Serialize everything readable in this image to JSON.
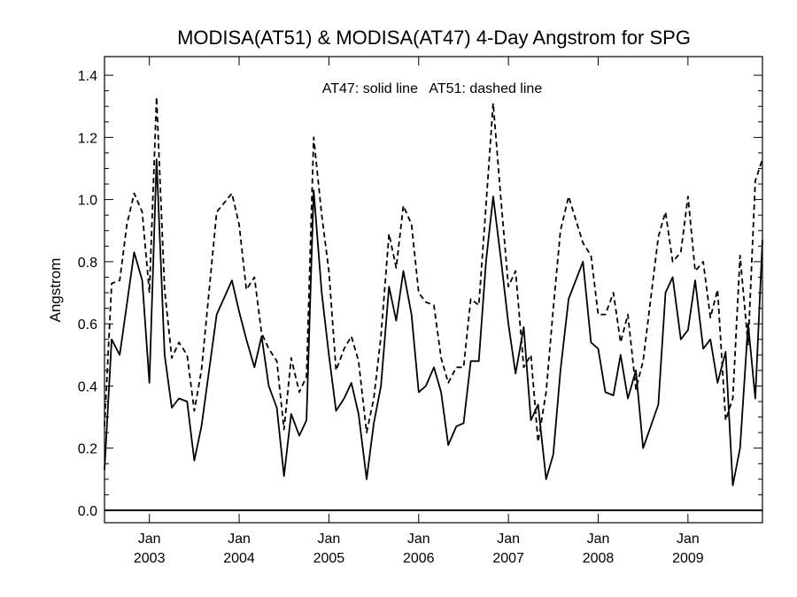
{
  "chart_data": {
    "type": "line",
    "title": "MODISA(AT51) & MODISA(AT47) 4-Day Angstrom for SPG",
    "xlabel": "",
    "ylabel": "Angstrom",
    "annotation": "AT47: solid line   AT51: dashed line",
    "ylim": [
      -0.04,
      1.46
    ],
    "xlim": [
      2002.5,
      2009.83
    ],
    "yticks": [
      0.0,
      0.2,
      0.4,
      0.6,
      0.8,
      1.0,
      1.2,
      1.4
    ],
    "ytick_labels": [
      "0.0",
      "0.2",
      "0.4",
      "0.6",
      "0.8",
      "1.0",
      "1.2",
      "1.4"
    ],
    "xticks": [
      2003.0,
      2004.0,
      2005.0,
      2006.0,
      2007.0,
      2008.0,
      2009.0
    ],
    "xtick_labels_top": [
      "Jan",
      "Jan",
      "Jan",
      "Jan",
      "Jan",
      "Jan",
      "Jan"
    ],
    "xtick_labels_bottom": [
      "2003",
      "2004",
      "2005",
      "2006",
      "2007",
      "2008",
      "2009"
    ],
    "series": [
      {
        "style": "solid",
        "x": [
          2002.5,
          2002.58,
          2002.67,
          2002.83,
          2002.92,
          2003.0,
          2003.08,
          2003.17,
          2003.25,
          2003.33,
          2003.42,
          2003.5,
          2003.58,
          2003.75,
          2003.92,
          2004.0,
          2004.08,
          2004.17,
          2004.25,
          2004.33,
          2004.42,
          2004.5,
          2004.58,
          2004.67,
          2004.75,
          2004.83,
          2004.92,
          2005.0,
          2005.08,
          2005.17,
          2005.25,
          2005.33,
          2005.42,
          2005.5,
          2005.58,
          2005.67,
          2005.75,
          2005.83,
          2005.92,
          2006.0,
          2006.08,
          2006.17,
          2006.25,
          2006.33,
          2006.42,
          2006.5,
          2006.58,
          2006.67,
          2006.75,
          2006.83,
          2006.92,
          2007.0,
          2007.08,
          2007.17,
          2007.25,
          2007.33,
          2007.42,
          2007.5,
          2007.58,
          2007.67,
          2007.83,
          2007.92,
          2008.0,
          2008.08,
          2008.17,
          2008.25,
          2008.33,
          2008.42,
          2008.5,
          2008.67,
          2008.75,
          2008.83,
          2008.92,
          2009.0,
          2009.08,
          2009.17,
          2009.25,
          2009.33,
          2009.42,
          2009.5,
          2009.58,
          2009.67,
          2009.75,
          2009.83
        ],
        "y": [
          0.13,
          0.55,
          0.5,
          0.83,
          0.74,
          0.41,
          1.13,
          0.5,
          0.33,
          0.36,
          0.35,
          0.16,
          0.27,
          0.63,
          0.74,
          0.64,
          0.55,
          0.46,
          0.56,
          0.4,
          0.33,
          0.11,
          0.31,
          0.24,
          0.29,
          1.03,
          0.7,
          0.5,
          0.32,
          0.36,
          0.41,
          0.31,
          0.1,
          0.28,
          0.4,
          0.72,
          0.61,
          0.77,
          0.63,
          0.38,
          0.4,
          0.46,
          0.38,
          0.21,
          0.27,
          0.28,
          0.48,
          0.48,
          0.8,
          1.01,
          0.8,
          0.6,
          0.44,
          0.59,
          0.29,
          0.34,
          0.1,
          0.18,
          0.45,
          0.68,
          0.8,
          0.54,
          0.52,
          0.38,
          0.37,
          0.5,
          0.36,
          0.45,
          0.2,
          0.34,
          0.7,
          0.75,
          0.55,
          0.58,
          0.74,
          0.52,
          0.55,
          0.41,
          0.51,
          0.08,
          0.2,
          0.6,
          0.36,
          0.87
        ]
      },
      {
        "style": "dashed",
        "x": [
          2002.5,
          2002.58,
          2002.67,
          2002.75,
          2002.83,
          2002.92,
          2003.0,
          2003.08,
          2003.17,
          2003.25,
          2003.33,
          2003.42,
          2003.5,
          2003.58,
          2003.75,
          2003.92,
          2004.0,
          2004.08,
          2004.17,
          2004.25,
          2004.33,
          2004.42,
          2004.5,
          2004.58,
          2004.67,
          2004.75,
          2004.83,
          2004.92,
          2005.0,
          2005.08,
          2005.17,
          2005.25,
          2005.33,
          2005.42,
          2005.5,
          2005.58,
          2005.67,
          2005.75,
          2005.83,
          2005.92,
          2006.0,
          2006.08,
          2006.17,
          2006.25,
          2006.33,
          2006.42,
          2006.5,
          2006.58,
          2006.67,
          2006.75,
          2006.83,
          2006.92,
          2007.0,
          2007.08,
          2007.17,
          2007.25,
          2007.33,
          2007.42,
          2007.5,
          2007.58,
          2007.67,
          2007.83,
          2007.92,
          2008.0,
          2008.08,
          2008.17,
          2008.25,
          2008.33,
          2008.42,
          2008.5,
          2008.67,
          2008.75,
          2008.83,
          2008.92,
          2009.0,
          2009.08,
          2009.17,
          2009.25,
          2009.33,
          2009.42,
          2009.5,
          2009.58,
          2009.67,
          2009.75,
          2009.83
        ],
        "y": [
          0.27,
          0.73,
          0.74,
          0.92,
          1.02,
          0.96,
          0.7,
          1.33,
          0.71,
          0.49,
          0.54,
          0.5,
          0.32,
          0.45,
          0.96,
          1.02,
          0.92,
          0.71,
          0.75,
          0.57,
          0.52,
          0.48,
          0.26,
          0.49,
          0.38,
          0.43,
          1.2,
          0.95,
          0.77,
          0.45,
          0.52,
          0.56,
          0.48,
          0.25,
          0.36,
          0.56,
          0.89,
          0.78,
          0.98,
          0.92,
          0.7,
          0.67,
          0.66,
          0.49,
          0.41,
          0.46,
          0.46,
          0.68,
          0.66,
          0.98,
          1.31,
          0.99,
          0.72,
          0.77,
          0.46,
          0.5,
          0.22,
          0.38,
          0.65,
          0.9,
          1.01,
          0.86,
          0.82,
          0.63,
          0.63,
          0.7,
          0.54,
          0.63,
          0.39,
          0.48,
          0.88,
          0.96,
          0.8,
          0.83,
          1.01,
          0.77,
          0.8,
          0.62,
          0.71,
          0.29,
          0.36,
          0.82,
          0.53,
          1.06,
          1.13
        ]
      }
    ]
  }
}
